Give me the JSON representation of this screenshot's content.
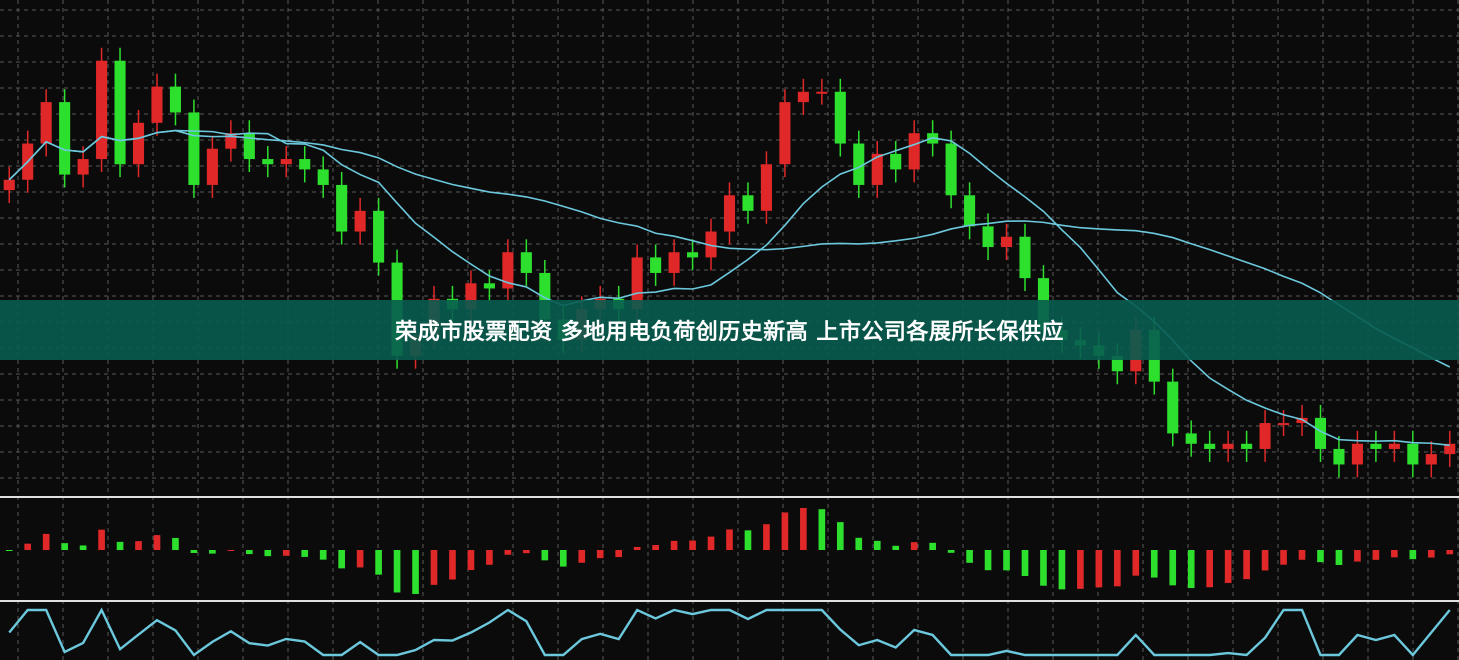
{
  "headline": "荣成市股票配资 多地用电负荷创历史新高 上市公司各展所长保供应",
  "colors": {
    "background": "#0b0b0b",
    "up": "#e02828",
    "down": "#2ee02e",
    "ma_line": "#6cc8dc",
    "banner": "#085c50",
    "separator": "#e0e0e0",
    "grid": "#5a5a5a"
  },
  "chart_data": {
    "type": "candlestick",
    "title": "",
    "grid": true,
    "panels": [
      "price-candles-with-moving-averages",
      "histogram-oscillator",
      "line-oscillator"
    ],
    "moving_average_periods": [
      10,
      30
    ],
    "closes": [
      63,
      70,
      78,
      64,
      67,
      86,
      66,
      74,
      81,
      76,
      62,
      69,
      72,
      67,
      66,
      67,
      65,
      62,
      53,
      57,
      47,
      29,
      33,
      40,
      38,
      43,
      42,
      49,
      45,
      36,
      32,
      38,
      40,
      38,
      48,
      45,
      49,
      48,
      53,
      60,
      57,
      66,
      78,
      80,
      80,
      70,
      62,
      68,
      65,
      72,
      70,
      60,
      54,
      50,
      52,
      44,
      34,
      32,
      31,
      29,
      26,
      34,
      24,
      14,
      12,
      11,
      12,
      11,
      16,
      16,
      17,
      11,
      8,
      12,
      11,
      12,
      8,
      10,
      12
    ]
  }
}
